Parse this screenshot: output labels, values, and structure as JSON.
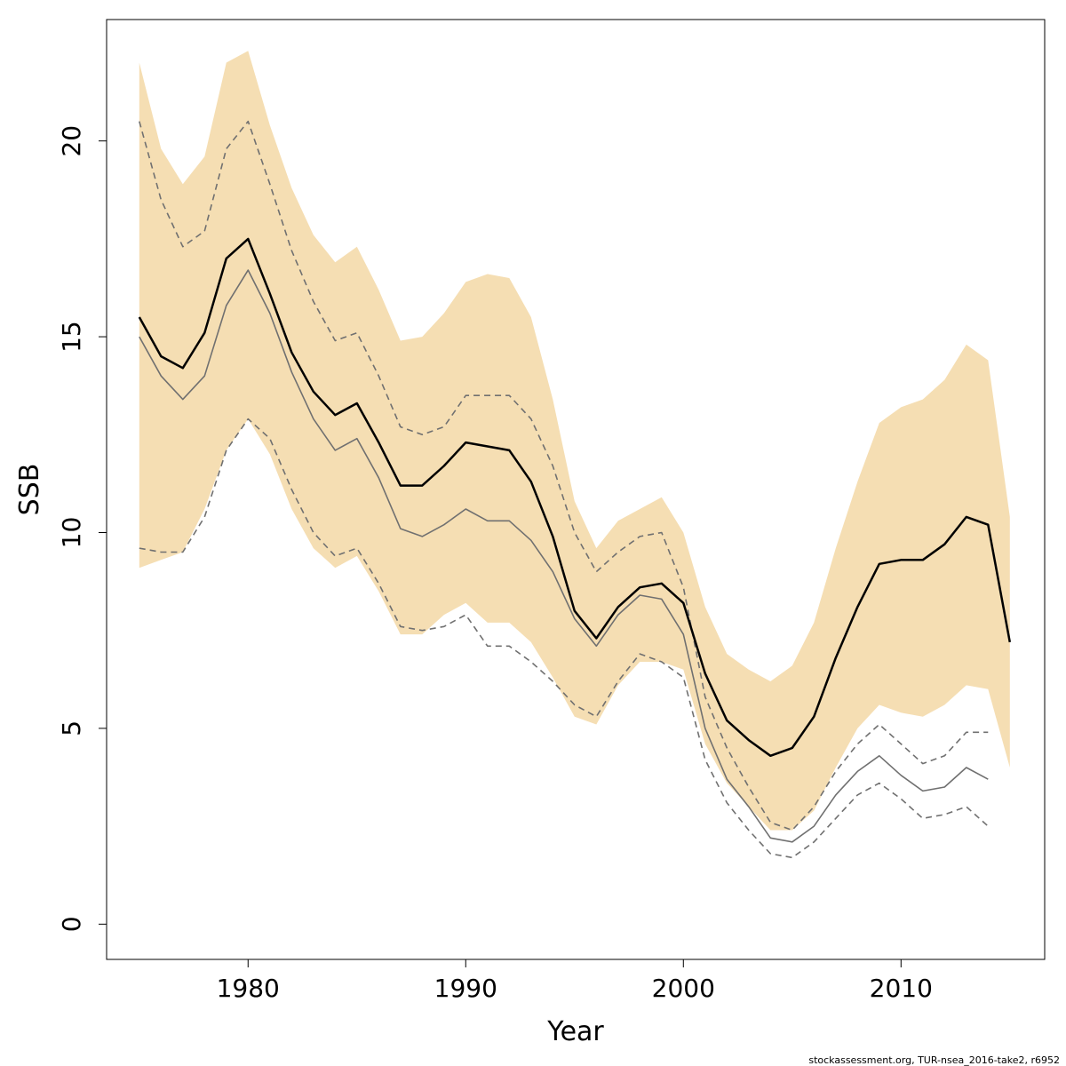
{
  "chart_data": {
    "type": "line",
    "xlabel": "Year",
    "ylabel": "SSB",
    "xlim": [
      1973.5,
      2016.6
    ],
    "ylim": [
      -0.9,
      23.1
    ],
    "xticks": [
      1980,
      1990,
      2000,
      2010
    ],
    "yticks": [
      0,
      5,
      10,
      15,
      20
    ],
    "grid": false,
    "credit": "stockassessment.org, TUR-nsea_2016-take2, r6952",
    "colors": {
      "band": "#F5DEB3",
      "current": "#000000",
      "previous": "#707070",
      "previous_ci": "#707070"
    },
    "band": {
      "x": [
        1975,
        1976,
        1977,
        1978,
        1979,
        1980,
        1981,
        1982,
        1983,
        1984,
        1985,
        1986,
        1987,
        1988,
        1989,
        1990,
        1991,
        1992,
        1993,
        1994,
        1995,
        1996,
        1997,
        1998,
        1999,
        2000,
        2001,
        2002,
        2003,
        2004,
        2005,
        2006,
        2007,
        2008,
        2009,
        2010,
        2011,
        2012,
        2013,
        2014,
        2015
      ],
      "upper": [
        22.0,
        19.8,
        18.9,
        19.6,
        22.0,
        22.3,
        20.4,
        18.8,
        17.6,
        16.9,
        17.3,
        16.2,
        14.9,
        15.0,
        15.6,
        16.4,
        16.6,
        16.5,
        15.5,
        13.4,
        10.8,
        9.6,
        10.3,
        10.6,
        10.9,
        10.0,
        8.1,
        6.9,
        6.5,
        6.2,
        6.6,
        7.7,
        9.6,
        11.3,
        12.8,
        13.2,
        13.4,
        13.9,
        14.8,
        14.4,
        10.4
      ],
      "lower": [
        9.1,
        9.3,
        9.5,
        10.6,
        12.1,
        12.9,
        12.0,
        10.6,
        9.6,
        9.1,
        9.4,
        8.5,
        7.4,
        7.4,
        7.9,
        8.2,
        7.7,
        7.7,
        7.2,
        6.3,
        5.3,
        5.1,
        6.1,
        6.7,
        6.7,
        6.5,
        4.6,
        3.6,
        3.0,
        2.4,
        2.4,
        2.9,
        4.0,
        5.0,
        5.6,
        5.4,
        5.3,
        5.6,
        6.1,
        6.0,
        4.0
      ]
    },
    "series": [
      {
        "key": "current",
        "x": [
          1975,
          1976,
          1977,
          1978,
          1979,
          1980,
          1981,
          1982,
          1983,
          1984,
          1985,
          1986,
          1987,
          1988,
          1989,
          1990,
          1991,
          1992,
          1993,
          1994,
          1995,
          1996,
          1997,
          1998,
          1999,
          2000,
          2001,
          2002,
          2003,
          2004,
          2005,
          2006,
          2007,
          2008,
          2009,
          2010,
          2011,
          2012,
          2013,
          2014,
          2015
        ],
        "values": [
          15.5,
          14.5,
          14.2,
          15.1,
          17.0,
          17.5,
          16.1,
          14.6,
          13.6,
          13.0,
          13.3,
          12.3,
          11.2,
          11.2,
          11.7,
          12.3,
          12.2,
          12.1,
          11.3,
          9.9,
          8.0,
          7.3,
          8.1,
          8.6,
          8.7,
          8.2,
          6.4,
          5.2,
          4.7,
          4.3,
          4.5,
          5.3,
          6.8,
          8.1,
          9.2,
          9.3,
          9.3,
          9.7,
          10.4,
          10.2,
          7.2
        ]
      },
      {
        "key": "previous",
        "x": [
          1975,
          1976,
          1977,
          1978,
          1979,
          1980,
          1981,
          1982,
          1983,
          1984,
          1985,
          1986,
          1987,
          1988,
          1989,
          1990,
          1991,
          1992,
          1993,
          1994,
          1995,
          1996,
          1997,
          1998,
          1999,
          2000,
          2001,
          2002,
          2003,
          2004,
          2005,
          2006,
          2007,
          2008,
          2009,
          2010,
          2011,
          2012,
          2013,
          2014
        ],
        "values": [
          15.0,
          14.0,
          13.4,
          14.0,
          15.8,
          16.7,
          15.6,
          14.1,
          12.9,
          12.1,
          12.4,
          11.4,
          10.1,
          9.9,
          10.2,
          10.6,
          10.3,
          10.3,
          9.8,
          9.0,
          7.8,
          7.1,
          7.9,
          8.4,
          8.3,
          7.4,
          5.0,
          3.7,
          3.0,
          2.2,
          2.1,
          2.5,
          3.3,
          3.9,
          4.3,
          3.8,
          3.4,
          3.5,
          4.0,
          3.7
        ]
      },
      {
        "key": "previous_upper",
        "x": [
          1975,
          1976,
          1977,
          1978,
          1979,
          1980,
          1981,
          1982,
          1983,
          1984,
          1985,
          1986,
          1987,
          1988,
          1989,
          1990,
          1991,
          1992,
          1993,
          1994,
          1995,
          1996,
          1997,
          1998,
          1999,
          2000,
          2001,
          2002,
          2003,
          2004,
          2005,
          2006,
          2007,
          2008,
          2009,
          2010,
          2011,
          2012,
          2013,
          2014
        ],
        "values": [
          20.5,
          18.5,
          17.3,
          17.7,
          19.8,
          20.5,
          18.9,
          17.2,
          15.9,
          14.9,
          15.1,
          14.0,
          12.7,
          12.5,
          12.7,
          13.5,
          13.5,
          13.5,
          12.9,
          11.7,
          10.0,
          9.0,
          9.5,
          9.9,
          10.0,
          8.6,
          5.8,
          4.5,
          3.5,
          2.6,
          2.4,
          3.0,
          3.9,
          4.6,
          5.1,
          4.6,
          4.1,
          4.3,
          4.9,
          4.9
        ]
      },
      {
        "key": "previous_lower",
        "x": [
          1975,
          1976,
          1977,
          1978,
          1979,
          1980,
          1981,
          1982,
          1983,
          1984,
          1985,
          1986,
          1987,
          1988,
          1989,
          1990,
          1991,
          1992,
          1993,
          1994,
          1995,
          1996,
          1997,
          1998,
          1999,
          2000,
          2001,
          2002,
          2003,
          2004,
          2005,
          2006,
          2007,
          2008,
          2009,
          2010,
          2011,
          2012,
          2013,
          2014
        ],
        "values": [
          9.6,
          9.5,
          9.5,
          10.4,
          12.1,
          12.9,
          12.4,
          11.1,
          10.0,
          9.4,
          9.6,
          8.7,
          7.6,
          7.5,
          7.6,
          7.9,
          7.1,
          7.1,
          6.7,
          6.2,
          5.6,
          5.3,
          6.2,
          6.9,
          6.7,
          6.3,
          4.2,
          3.1,
          2.4,
          1.8,
          1.7,
          2.1,
          2.7,
          3.3,
          3.6,
          3.2,
          2.7,
          2.8,
          3.0,
          2.5
        ]
      }
    ]
  }
}
